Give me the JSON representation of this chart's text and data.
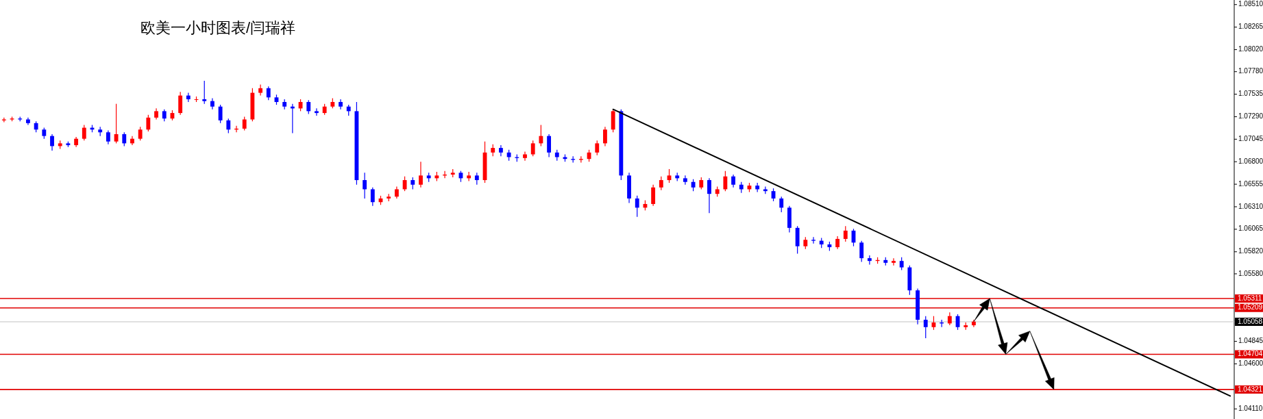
{
  "chart_data": {
    "type": "candlestick",
    "title": "欧美一小时图表/闫瑞祥",
    "categories": [
      null,
      null,
      null,
      null,
      null,
      null,
      null,
      null,
      null,
      null,
      null,
      null,
      null,
      null,
      null,
      null,
      null,
      null,
      null,
      null,
      null,
      null,
      null,
      null,
      null,
      null,
      null,
      null,
      null,
      null,
      null,
      null,
      null,
      null,
      null,
      null,
      null,
      null,
      null,
      null,
      null,
      null,
      null,
      null,
      null,
      null,
      null,
      null,
      null,
      null,
      null,
      null,
      null,
      null,
      null,
      null,
      null,
      null,
      null,
      null,
      null,
      null,
      null,
      null,
      null,
      null,
      null,
      null,
      null,
      null,
      null,
      null,
      null,
      null,
      null,
      null,
      null,
      null,
      null,
      null,
      null,
      null,
      null,
      null,
      null,
      null,
      null,
      null,
      null,
      null,
      null,
      null,
      null,
      null,
      null,
      null,
      null,
      null,
      null,
      null,
      null,
      null,
      null,
      null,
      null,
      null,
      null,
      null,
      null,
      null,
      null,
      null,
      null,
      null,
      null,
      null,
      null,
      null,
      null,
      null,
      null,
      null,
      null,
      null,
      null,
      null,
      null,
      null,
      null,
      null,
      null,
      null,
      null,
      null,
      null,
      null,
      null,
      null,
      null,
      null,
      null,
      null,
      null,
      null,
      null,
      null,
      null,
      null,
      null,
      null,
      null,
      null,
      null,
      null
    ],
    "ohlc": [
      [
        1.0725,
        1.0728,
        1.0723,
        1.0726
      ],
      [
        1.0726,
        1.0729,
        1.0724,
        1.0727
      ],
      [
        1.0727,
        1.0729,
        1.0724,
        1.0726
      ],
      [
        1.0726,
        1.0728,
        1.072,
        1.0722
      ],
      [
        1.0722,
        1.0724,
        1.0712,
        1.0715
      ],
      [
        1.0715,
        1.0717,
        1.0705,
        1.0708
      ],
      [
        1.0708,
        1.071,
        1.0692,
        1.0697
      ],
      [
        1.0697,
        1.0703,
        1.0694,
        1.07
      ],
      [
        1.07,
        1.0702,
        1.0696,
        1.0698
      ],
      [
        1.0698,
        1.0707,
        1.0696,
        1.0705
      ],
      [
        1.0705,
        1.072,
        1.0703,
        1.0717
      ],
      [
        1.0717,
        1.072,
        1.0712,
        1.0715
      ],
      [
        1.0715,
        1.0718,
        1.0708,
        1.0712
      ],
      [
        1.0712,
        1.0714,
        1.0699,
        1.0702
      ],
      [
        1.0702,
        1.0743,
        1.07,
        1.071
      ],
      [
        1.071,
        1.0712,
        1.0697,
        1.07
      ],
      [
        1.07,
        1.0708,
        1.0698,
        1.0705
      ],
      [
        1.0705,
        1.0718,
        1.0703,
        1.0715
      ],
      [
        1.0715,
        1.0731,
        1.0713,
        1.0728
      ],
      [
        1.0728,
        1.0738,
        1.0726,
        1.0735
      ],
      [
        1.0735,
        1.0737,
        1.0724,
        1.0727
      ],
      [
        1.0727,
        1.0736,
        1.0725,
        1.0733
      ],
      [
        1.0733,
        1.0756,
        1.0731,
        1.0752
      ],
      [
        1.0752,
        1.0755,
        1.0745,
        1.0748
      ],
      [
        1.0748,
        1.0751,
        1.0745,
        1.0748
      ],
      [
        1.0748,
        1.0768,
        1.0743,
        1.0746
      ],
      [
        1.0746,
        1.0749,
        1.0737,
        1.074
      ],
      [
        1.074,
        1.0742,
        1.0722,
        1.0725
      ],
      [
        1.0725,
        1.0727,
        1.0711,
        1.0715
      ],
      [
        1.0715,
        1.0719,
        1.0712,
        1.0716
      ],
      [
        1.0716,
        1.0729,
        1.0714,
        1.0726
      ],
      [
        1.0726,
        1.076,
        1.0724,
        1.0755
      ],
      [
        1.0755,
        1.0764,
        1.0752,
        1.076
      ],
      [
        1.076,
        1.0762,
        1.0747,
        1.075
      ],
      [
        1.075,
        1.0753,
        1.0742,
        1.0745
      ],
      [
        1.0745,
        1.0748,
        1.0737,
        1.074
      ],
      [
        1.074,
        1.0743,
        1.0711,
        1.0738
      ],
      [
        1.0738,
        1.0748,
        1.0735,
        1.0745
      ],
      [
        1.0745,
        1.0747,
        1.0732,
        1.0735
      ],
      [
        1.0735,
        1.0738,
        1.073,
        1.0733
      ],
      [
        1.0733,
        1.0743,
        1.0731,
        1.074
      ],
      [
        1.074,
        1.0749,
        1.0738,
        1.0745
      ],
      [
        1.0745,
        1.0748,
        1.0737,
        1.074
      ],
      [
        1.074,
        1.0742,
        1.073,
        1.0735
      ],
      [
        1.0735,
        1.0745,
        1.0655,
        1.066
      ],
      [
        1.066,
        1.0668,
        1.064,
        1.065
      ],
      [
        1.065,
        1.0652,
        1.0632,
        1.0636
      ],
      [
        1.0636,
        1.0643,
        1.0633,
        1.064
      ],
      [
        1.064,
        1.0645,
        1.0637,
        1.0642
      ],
      [
        1.0642,
        1.0653,
        1.064,
        1.065
      ],
      [
        1.065,
        1.0664,
        1.0648,
        1.066
      ],
      [
        1.066,
        1.0663,
        1.065,
        1.0655
      ],
      [
        1.0655,
        1.068,
        1.0652,
        1.0665
      ],
      [
        1.0665,
        1.0668,
        1.0658,
        1.0662
      ],
      [
        1.0662,
        1.0669,
        1.0659,
        1.0665
      ],
      [
        1.0665,
        1.067,
        1.0662,
        1.0666
      ],
      [
        1.0666,
        1.0672,
        1.0663,
        1.0668
      ],
      [
        1.0668,
        1.067,
        1.0658,
        1.0662
      ],
      [
        1.0662,
        1.0669,
        1.0659,
        1.0665
      ],
      [
        1.0665,
        1.0668,
        1.0655,
        1.066
      ],
      [
        1.066,
        1.0702,
        1.0657,
        1.069
      ],
      [
        1.069,
        1.0699,
        1.0686,
        1.0695
      ],
      [
        1.0695,
        1.0698,
        1.0686,
        1.069
      ],
      [
        1.069,
        1.0693,
        1.0681,
        1.0685
      ],
      [
        1.0685,
        1.0688,
        1.068,
        1.0684
      ],
      [
        1.0684,
        1.0691,
        1.0681,
        1.0688
      ],
      [
        1.0688,
        1.0703,
        1.0686,
        1.07
      ],
      [
        1.07,
        1.072,
        1.0697,
        1.0708
      ],
      [
        1.0708,
        1.071,
        1.0685,
        1.069
      ],
      [
        1.069,
        1.0693,
        1.0681,
        1.0685
      ],
      [
        1.0685,
        1.0688,
        1.068,
        1.0683
      ],
      [
        1.0683,
        1.0686,
        1.0679,
        1.0682
      ],
      [
        1.0682,
        1.0686,
        1.0679,
        1.0683
      ],
      [
        1.0683,
        1.0693,
        1.068,
        1.069
      ],
      [
        1.069,
        1.0703,
        1.0687,
        1.07
      ],
      [
        1.07,
        1.0718,
        1.0697,
        1.0715
      ],
      [
        1.0715,
        1.0737,
        1.0712,
        1.0735
      ],
      [
        1.0735,
        1.0737,
        1.066,
        1.0665
      ],
      [
        1.0665,
        1.0668,
        1.0635,
        1.064
      ],
      [
        1.064,
        1.0643,
        1.062,
        1.063
      ],
      [
        1.063,
        1.0638,
        1.0627,
        1.0634
      ],
      [
        1.0634,
        1.0655,
        1.0632,
        1.0652
      ],
      [
        1.0652,
        1.0664,
        1.0649,
        1.066
      ],
      [
        1.066,
        1.0672,
        1.0657,
        1.0665
      ],
      [
        1.0665,
        1.0668,
        1.0659,
        1.0662
      ],
      [
        1.0662,
        1.0665,
        1.0655,
        1.0658
      ],
      [
        1.0658,
        1.0661,
        1.0648,
        1.0652
      ],
      [
        1.0652,
        1.0663,
        1.065,
        1.066
      ],
      [
        1.066,
        1.0662,
        1.0624,
        1.0645
      ],
      [
        1.0645,
        1.0653,
        1.0642,
        1.065
      ],
      [
        1.065,
        1.067,
        1.0648,
        1.0664
      ],
      [
        1.0664,
        1.0666,
        1.0652,
        1.0655
      ],
      [
        1.0655,
        1.0658,
        1.0646,
        1.065
      ],
      [
        1.065,
        1.0657,
        1.0647,
        1.0654
      ],
      [
        1.0654,
        1.0657,
        1.0647,
        1.065
      ],
      [
        1.065,
        1.0653,
        1.0645,
        1.0648
      ],
      [
        1.0648,
        1.0651,
        1.0637,
        1.064
      ],
      [
        1.064,
        1.0642,
        1.0625,
        1.063
      ],
      [
        1.063,
        1.0632,
        1.0603,
        1.0608
      ],
      [
        1.0608,
        1.061,
        1.058,
        1.0588
      ],
      [
        1.0588,
        1.0598,
        1.0585,
        1.0595
      ],
      [
        1.0595,
        1.0598,
        1.0591,
        1.0594
      ],
      [
        1.0594,
        1.0597,
        1.0586,
        1.059
      ],
      [
        1.059,
        1.0593,
        1.0583,
        1.0587
      ],
      [
        1.0587,
        1.0599,
        1.0585,
        1.0596
      ],
      [
        1.0596,
        1.061,
        1.0593,
        1.0605
      ],
      [
        1.0605,
        1.0607,
        1.0588,
        1.0592
      ],
      [
        1.0592,
        1.0594,
        1.0571,
        1.0575
      ],
      [
        1.0575,
        1.0578,
        1.0568,
        1.0572
      ],
      [
        1.0572,
        1.0576,
        1.0569,
        1.0573
      ],
      [
        1.0573,
        1.0576,
        1.0567,
        1.057
      ],
      [
        1.057,
        1.0575,
        1.0567,
        1.0572
      ],
      [
        1.0572,
        1.0576,
        1.0562,
        1.0565
      ],
      [
        1.0565,
        1.0567,
        1.0535,
        1.054
      ],
      [
        1.054,
        1.0542,
        1.0503,
        1.0508
      ],
      [
        1.0508,
        1.0512,
        1.0488,
        1.05
      ],
      [
        1.05,
        1.0512,
        1.0497,
        1.0505
      ],
      [
        1.0505,
        1.0508,
        1.05,
        1.0504
      ],
      [
        1.0504,
        1.0516,
        1.0502,
        1.0512
      ],
      [
        1.0512,
        1.0514,
        1.0497,
        1.05
      ],
      [
        1.05,
        1.0505,
        1.0497,
        1.0502
      ],
      [
        1.0502,
        1.0508,
        1.05,
        1.0506
      ],
      null,
      null,
      null,
      null,
      null,
      null,
      null,
      null,
      null,
      null,
      null,
      null,
      null,
      null,
      null,
      null,
      null,
      null,
      null,
      null,
      null,
      null,
      null,
      null,
      null,
      null,
      null,
      null,
      null,
      null,
      null,
      null
    ],
    "colors": [
      "#ff0000",
      "#ff0000",
      "#0000ff",
      "#0000ff",
      "#0000ff",
      "#0000ff",
      "#0000ff",
      "#ff0000",
      "#0000ff",
      "#ff0000",
      "#ff0000",
      "#0000ff",
      "#0000ff",
      "#0000ff",
      "#ff0000",
      "#0000ff",
      "#ff0000",
      "#ff0000",
      "#ff0000",
      "#ff0000",
      "#0000ff",
      "#ff0000",
      "#ff0000",
      "#0000ff",
      "#ff0000",
      "#0000ff",
      "#0000ff",
      "#0000ff",
      "#0000ff",
      "#ff0000",
      "#ff0000",
      "#ff0000",
      "#ff0000",
      "#0000ff",
      "#0000ff",
      "#0000ff",
      "#0000ff",
      "#ff0000",
      "#0000ff",
      "#0000ff",
      "#ff0000",
      "#ff0000",
      "#0000ff",
      "#0000ff",
      "#0000ff",
      "#0000ff",
      "#0000ff",
      "#ff0000",
      "#ff0000",
      "#ff0000",
      "#ff0000",
      "#0000ff",
      "#ff0000",
      "#0000ff",
      "#ff0000",
      "#ff0000",
      "#ff0000",
      "#0000ff",
      "#ff0000",
      "#0000ff",
      "#ff0000",
      "#ff0000",
      "#0000ff",
      "#0000ff",
      "#0000ff",
      "#ff0000",
      "#ff0000",
      "#ff0000",
      "#0000ff",
      "#0000ff",
      "#0000ff",
      "#0000ff",
      "#ff0000",
      "#ff0000",
      "#ff0000",
      "#ff0000",
      "#ff0000",
      "#0000ff",
      "#0000ff",
      "#0000ff",
      "#ff0000",
      "#ff0000",
      "#ff0000",
      "#ff0000",
      "#0000ff",
      "#0000ff",
      "#0000ff",
      "#ff0000",
      "#0000ff",
      "#ff0000",
      "#ff0000",
      "#0000ff",
      "#0000ff",
      "#ff0000",
      "#0000ff",
      "#0000ff",
      "#0000ff",
      "#0000ff",
      "#0000ff",
      "#0000ff",
      "#ff0000",
      "#0000ff",
      "#0000ff",
      "#0000ff",
      "#ff0000",
      "#ff0000",
      "#0000ff",
      "#0000ff",
      "#0000ff",
      "#ff0000",
      "#0000ff",
      "#ff0000",
      "#0000ff",
      "#0000ff",
      "#0000ff",
      "#0000ff",
      "#ff0000",
      "#0000ff",
      "#ff0000",
      "#0000ff",
      "#ff0000",
      "#ff0000",
      null,
      null,
      null,
      null,
      null,
      null,
      null,
      null,
      null,
      null,
      null,
      null,
      null,
      null,
      null,
      null,
      null,
      null,
      null,
      null,
      null,
      null,
      null,
      null,
      null,
      null,
      null,
      null,
      null,
      null,
      null,
      null
    ],
    "series": [
      {
        "type": "line",
        "color": "#000000",
        "values": [
          null,
          null,
          null,
          null,
          null,
          null,
          null,
          null,
          null,
          null,
          null,
          null,
          null,
          null,
          null,
          null,
          null,
          null,
          null,
          null,
          null,
          null,
          null,
          null,
          null,
          null,
          null,
          null,
          null,
          null,
          null,
          null,
          null,
          null,
          null,
          null,
          null,
          null,
          null,
          null,
          null,
          null,
          null,
          null,
          null,
          null,
          null,
          null,
          null,
          null,
          null,
          null,
          null,
          null,
          null,
          null,
          null,
          null,
          null,
          null,
          null,
          null,
          null,
          null,
          null,
          null,
          null,
          null,
          null,
          null,
          null,
          null,
          null,
          null,
          null,
          null,
          1.0737,
          null,
          null,
          null,
          null,
          null,
          null,
          null,
          null,
          null,
          null,
          null,
          null,
          null,
          null,
          null,
          null,
          null,
          null,
          null,
          null,
          null,
          null,
          null,
          null,
          null,
          null,
          null,
          null,
          null,
          null,
          null,
          null,
          null,
          null,
          null,
          null,
          null,
          null,
          null,
          null,
          null,
          null,
          null,
          null,
          null,
          null,
          null,
          null,
          null,
          null,
          null,
          null,
          null,
          null,
          null,
          null,
          null,
          null,
          null,
          null,
          null,
          null,
          null,
          null,
          null,
          null,
          null,
          null,
          null,
          null,
          null,
          null,
          null,
          null,
          null,
          null,
          1.0425
        ]
      }
    ],
    "ylim": [
      1.04,
      1.0856
    ],
    "yticks": [
      {
        "value": 1.0851,
        "label": "1.08510"
      },
      1.08265,
      {
        "value": 1.0802,
        "label": "1.08020"
      },
      {
        "value": 1.0778,
        "label": "1.07780"
      },
      1.07535,
      {
        "value": 1.0729,
        "label": "1.07290"
      },
      1.07045,
      {
        "value": 1.068,
        "label": "1.06800"
      },
      1.06555,
      {
        "value": 1.0631,
        "label": "1.06310"
      },
      1.06065,
      {
        "value": 1.0582,
        "label": "1.05820"
      },
      {
        "value": 1.0558,
        "label": "1.05580"
      },
      1.04845,
      {
        "value": 1.046,
        "label": "1.04600"
      },
      {
        "value": 1.0411,
        "label": "1.04110"
      }
    ],
    "ref_lines": [
      {
        "axis": "y",
        "value": 1.05311,
        "label": "1.05311",
        "color": "#e00000"
      },
      {
        "axis": "y",
        "value": 1.05209,
        "label": "1.05209",
        "color": "#e00000"
      },
      {
        "axis": "y",
        "value": 1.05058,
        "label": "1.05058",
        "color": "#c0c0c0"
      },
      {
        "axis": "y",
        "value": 1.04704,
        "label": "1.04704",
        "color": "#e00000"
      },
      {
        "axis": "y",
        "value": 1.04321,
        "label": "1.04321",
        "color": "#e00000"
      }
    ]
  }
}
